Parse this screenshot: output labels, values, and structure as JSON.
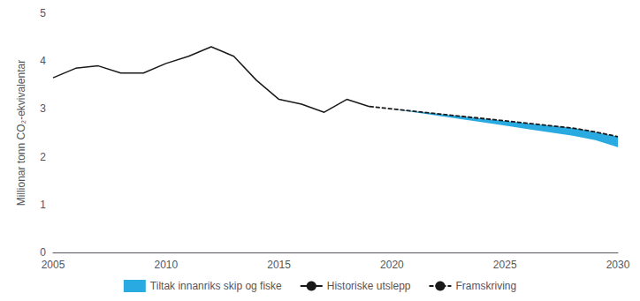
{
  "chart_data": {
    "type": "line",
    "ylabel": "Millionar tonn CO₂-ekvivalentar",
    "xlim": [
      2005,
      2030
    ],
    "ylim": [
      0,
      5
    ],
    "xticks": [
      2005,
      2010,
      2015,
      2020,
      2025,
      2030
    ],
    "yticks": [
      0,
      1,
      2,
      3,
      4,
      5
    ],
    "grid": false,
    "legend": "bottom",
    "series": [
      {
        "name": "Tiltak innanriks skip og fiske",
        "type": "area",
        "color": "#29ABE2",
        "x": [
          2019,
          2020,
          2021,
          2022,
          2023,
          2024,
          2025,
          2026,
          2027,
          2028,
          2029,
          2030
        ],
        "values": [
          3.05,
          3.0,
          2.95,
          2.9,
          2.85,
          2.8,
          2.75,
          2.7,
          2.65,
          2.6,
          2.52,
          2.42
        ],
        "lower": [
          3.05,
          3.0,
          2.93,
          2.86,
          2.79,
          2.72,
          2.65,
          2.58,
          2.51,
          2.44,
          2.35,
          2.2
        ]
      },
      {
        "name": "Historiske utslepp",
        "type": "line",
        "color": "#1a1a1a",
        "line_style": "solid",
        "x": [
          2005,
          2006,
          2007,
          2008,
          2009,
          2010,
          2011,
          2012,
          2013,
          2014,
          2015,
          2016,
          2017,
          2018,
          2019
        ],
        "values": [
          3.65,
          3.85,
          3.9,
          3.75,
          3.75,
          3.95,
          4.1,
          4.3,
          4.1,
          3.6,
          3.2,
          3.1,
          2.93,
          3.2,
          3.05
        ]
      },
      {
        "name": "Framskriving",
        "type": "line",
        "color": "#1a1a1a",
        "line_style": "dashed",
        "x": [
          2019,
          2020,
          2021,
          2022,
          2023,
          2024,
          2025,
          2026,
          2027,
          2028,
          2029,
          2030
        ],
        "values": [
          3.05,
          3.0,
          2.95,
          2.9,
          2.85,
          2.8,
          2.75,
          2.7,
          2.65,
          2.6,
          2.52,
          2.42
        ]
      }
    ]
  }
}
